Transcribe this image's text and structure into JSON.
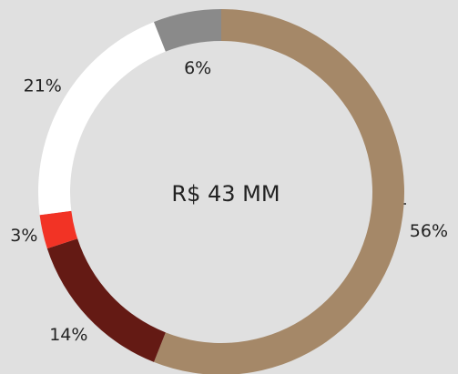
{
  "chart_data": {
    "type": "pie",
    "center_label": "R$ 43 MM",
    "values": [
      56,
      14,
      3,
      21,
      6
    ],
    "value_labels": [
      "56%",
      "14%",
      "3%",
      "21%",
      "6%"
    ],
    "colors": [
      "#a58868",
      "#641a14",
      "#f23325",
      "#ffffff",
      "#8a8a8a"
    ]
  }
}
